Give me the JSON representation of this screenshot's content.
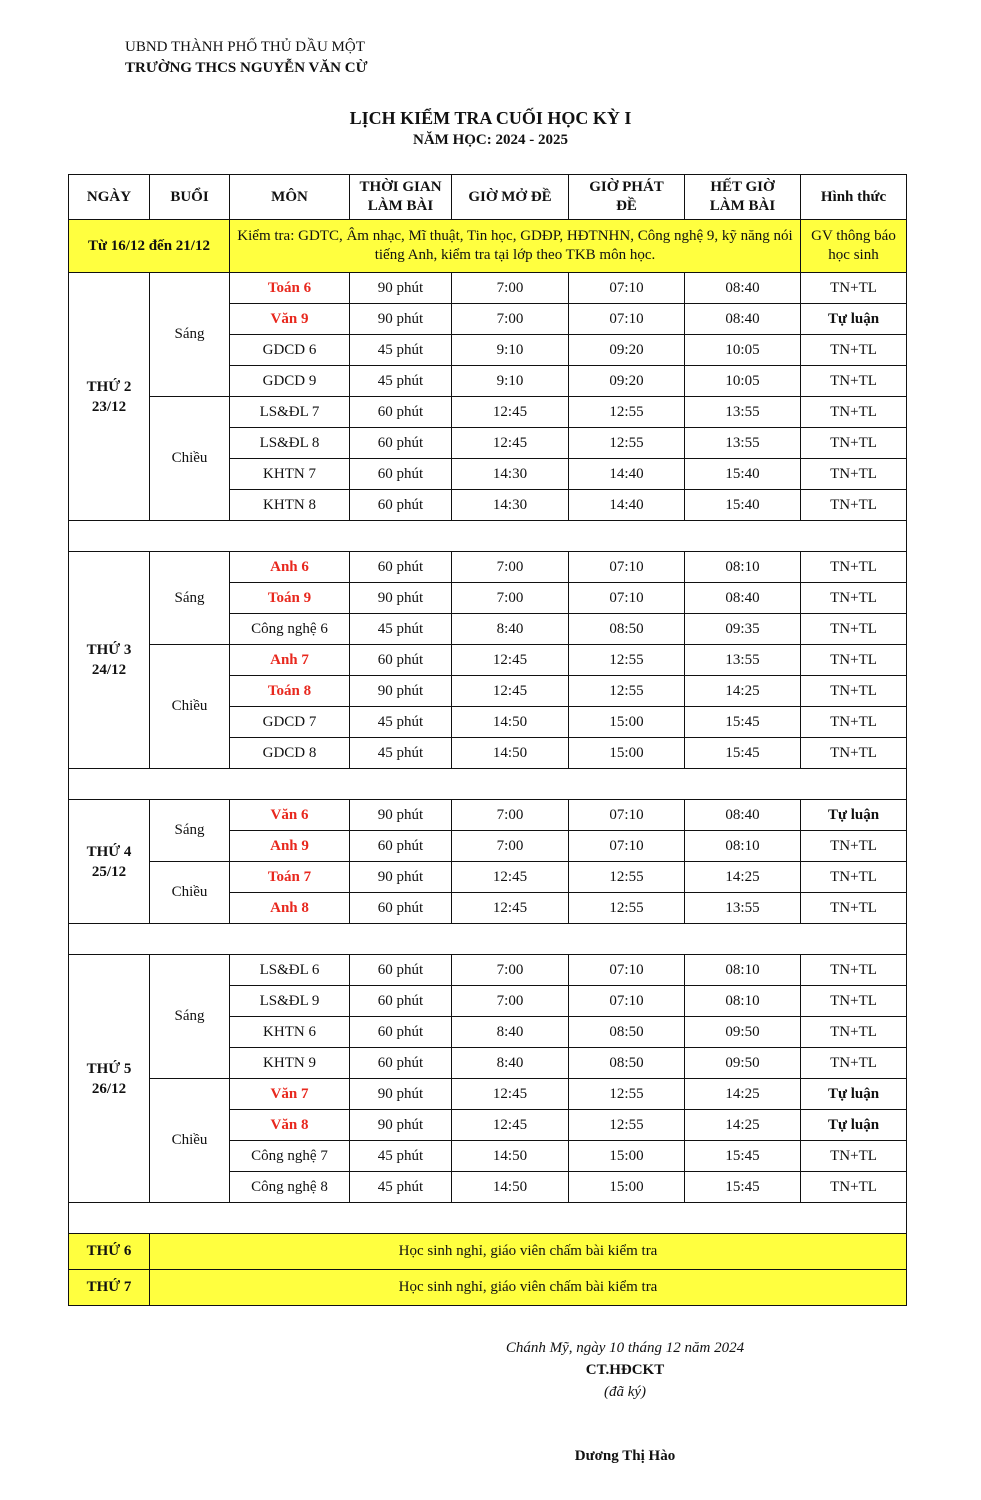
{
  "org": {
    "line1": "UBND THÀNH PHỐ THỦ DẦU MỘT",
    "line2": "TRƯỜNG THCS NGUYỄN VĂN CỪ"
  },
  "title": "LỊCH KIỂM TRA CUỐI HỌC KỲ I",
  "subtitle": "NĂM HỌC: 2024 - 2025",
  "headers": [
    "NGÀY",
    "BUỔI",
    "MÔN",
    "THỜI GIAN LÀM BÀI",
    "GIỜ MỞ ĐỀ",
    "GIỜ PHÁT ĐỀ",
    "HẾT GIỜ LÀM BÀI",
    "Hình thức"
  ],
  "pre_row": {
    "date": "Từ 16/12 đến 21/12",
    "note": "Kiểm tra: GDTC, Âm nhạc, Mĩ thuật, Tin học, GDĐP, HĐTNHN, Công nghệ 9, kỹ năng nói tiếng Anh, kiểm tra tại lớp theo TKB môn học.",
    "form": "GV thông báo học sinh"
  },
  "highlight_color": "#ffff3f",
  "subject_highlight_color": "#e8281e",
  "days": [
    {
      "day": "THỨ 2",
      "date": "23/12",
      "sessions": [
        {
          "name": "Sáng",
          "exams": [
            [
              "Toán 6",
              "90 phút",
              "7:00",
              "07:10",
              "08:40",
              "TN+TL",
              true
            ],
            [
              "Văn 9",
              "90 phút",
              "7:00",
              "07:10",
              "08:40",
              "Tự luận",
              true
            ],
            [
              "GDCD 6",
              "45 phút",
              "9:10",
              "09:20",
              "10:05",
              "TN+TL",
              false
            ],
            [
              "GDCD 9",
              "45 phút",
              "9:10",
              "09:20",
              "10:05",
              "TN+TL",
              false
            ]
          ]
        },
        {
          "name": "Chiều",
          "exams": [
            [
              "LS&ĐL 7",
              "60 phút",
              "12:45",
              "12:55",
              "13:55",
              "TN+TL",
              false
            ],
            [
              "LS&ĐL 8",
              "60 phút",
              "12:45",
              "12:55",
              "13:55",
              "TN+TL",
              false
            ],
            [
              "KHTN 7",
              "60 phút",
              "14:30",
              "14:40",
              "15:40",
              "TN+TL",
              false
            ],
            [
              "KHTN 8",
              "60 phút",
              "14:30",
              "14:40",
              "15:40",
              "TN+TL",
              false
            ]
          ]
        }
      ]
    },
    {
      "day": "THỨ 3",
      "date": "24/12",
      "sessions": [
        {
          "name": "Sáng",
          "exams": [
            [
              "Anh 6",
              "60 phút",
              "7:00",
              "07:10",
              "08:10",
              "TN+TL",
              true
            ],
            [
              "Toán 9",
              "90 phút",
              "7:00",
              "07:10",
              "08:40",
              "TN+TL",
              true
            ],
            [
              "Công nghệ 6",
              "45 phút",
              "8:40",
              "08:50",
              "09:35",
              "TN+TL",
              false
            ]
          ]
        },
        {
          "name": "Chiều",
          "exams": [
            [
              "Anh 7",
              "60 phút",
              "12:45",
              "12:55",
              "13:55",
              "TN+TL",
              true
            ],
            [
              "Toán 8",
              "90 phút",
              "12:45",
              "12:55",
              "14:25",
              "TN+TL",
              true
            ],
            [
              "GDCD 7",
              "45 phút",
              "14:50",
              "15:00",
              "15:45",
              "TN+TL",
              false
            ],
            [
              "GDCD 8",
              "45 phút",
              "14:50",
              "15:00",
              "15:45",
              "TN+TL",
              false
            ]
          ]
        }
      ]
    },
    {
      "day": "THỨ 4",
      "date": "25/12",
      "sessions": [
        {
          "name": "Sáng",
          "exams": [
            [
              "Văn 6",
              "90 phút",
              "7:00",
              "07:10",
              "08:40",
              "Tự luận",
              true
            ],
            [
              "Anh 9",
              "60 phút",
              "7:00",
              "07:10",
              "08:10",
              "TN+TL",
              true
            ]
          ]
        },
        {
          "name": "Chiều",
          "exams": [
            [
              "Toán 7",
              "90 phút",
              "12:45",
              "12:55",
              "14:25",
              "TN+TL",
              true
            ],
            [
              "Anh 8",
              "60 phút",
              "12:45",
              "12:55",
              "13:55",
              "TN+TL",
              true
            ]
          ]
        }
      ]
    },
    {
      "day": "THỨ 5",
      "date": "26/12",
      "sessions": [
        {
          "name": "Sáng",
          "exams": [
            [
              "LS&ĐL 6",
              "60 phút",
              "7:00",
              "07:10",
              "08:10",
              "TN+TL",
              false
            ],
            [
              "LS&ĐL 9",
              "60 phút",
              "7:00",
              "07:10",
              "08:10",
              "TN+TL",
              false
            ],
            [
              "KHTN 6",
              "60 phút",
              "8:40",
              "08:50",
              "09:50",
              "TN+TL",
              false
            ],
            [
              "KHTN 9",
              "60 phút",
              "8:40",
              "08:50",
              "09:50",
              "TN+TL",
              false
            ]
          ]
        },
        {
          "name": "Chiều",
          "exams": [
            [
              "Văn 7",
              "90 phút",
              "12:45",
              "12:55",
              "14:25",
              "Tự luận",
              true
            ],
            [
              "Văn 8",
              "90 phút",
              "12:45",
              "12:55",
              "14:25",
              "Tự luận",
              true
            ],
            [
              "Công nghệ 7",
              "45 phút",
              "14:50",
              "15:00",
              "15:45",
              "TN+TL",
              false
            ],
            [
              "Công nghệ 8",
              "45 phút",
              "14:50",
              "15:00",
              "15:45",
              "TN+TL",
              false
            ]
          ]
        }
      ]
    }
  ],
  "rest_days": [
    {
      "day": "THỨ 6",
      "note": "Học sinh nghỉ, giáo viên chấm bài kiểm tra"
    },
    {
      "day": "THỨ 7",
      "note": "Học sinh nghỉ, giáo viên chấm bài kiểm tra"
    }
  ],
  "footer": {
    "place_date": "Chánh Mỹ, ngày 10 tháng 12 năm 2024",
    "role": "CT.HĐCKT",
    "signed": "(đã ký)",
    "name": "Dương Thị Hào"
  }
}
